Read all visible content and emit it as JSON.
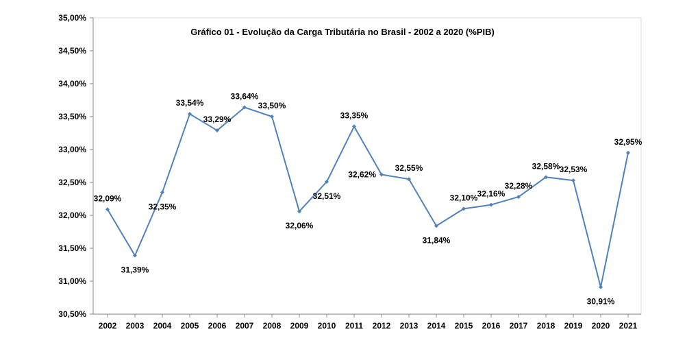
{
  "chart_data": {
    "type": "line",
    "title": "Gráfico 01 - Evolução da Carga Tributária no Brasil - 2002 a 2020 (%PIB)",
    "xlabel": "",
    "ylabel": "",
    "ylim": [
      30.5,
      35.0
    ],
    "yticks": [
      30.5,
      31.0,
      31.5,
      32.0,
      32.5,
      33.0,
      33.5,
      34.0,
      34.5,
      35.0
    ],
    "ytick_labels": [
      "30,50%",
      "31,00%",
      "31,50%",
      "32,00%",
      "32,50%",
      "33,00%",
      "33,50%",
      "34,00%",
      "34,50%",
      "35,00%"
    ],
    "categories": [
      "2002",
      "2003",
      "2004",
      "2005",
      "2006",
      "2007",
      "2008",
      "2009",
      "2010",
      "2011",
      "2012",
      "2013",
      "2014",
      "2015",
      "2016",
      "2017",
      "2018",
      "2019",
      "2020",
      "2021"
    ],
    "values": [
      32.09,
      31.39,
      32.35,
      33.54,
      33.29,
      33.64,
      33.5,
      32.06,
      32.51,
      33.35,
      32.62,
      32.55,
      31.84,
      32.1,
      32.16,
      32.28,
      32.58,
      32.53,
      30.91,
      32.95
    ],
    "value_labels": [
      "32,09%",
      "31,39%",
      "32,35%",
      "33,54%",
      "33,29%",
      "33,64%",
      "33,50%",
      "32,06%",
      "32,51%",
      "33,35%",
      "32,62%",
      "32,55%",
      "31,84%",
      "32,10%",
      "32,16%",
      "32,28%",
      "32,58%",
      "32,53%",
      "30,91%",
      "32,95%"
    ],
    "label_positions": [
      "above",
      "below",
      "below",
      "above",
      "above",
      "above",
      "above",
      "below",
      "below",
      "above",
      "left",
      "above",
      "below",
      "above",
      "above",
      "above",
      "above",
      "above",
      "below",
      "above"
    ],
    "grid": false,
    "legend": "none",
    "series_color": "#4F81BD",
    "axis_color": "#868686"
  }
}
